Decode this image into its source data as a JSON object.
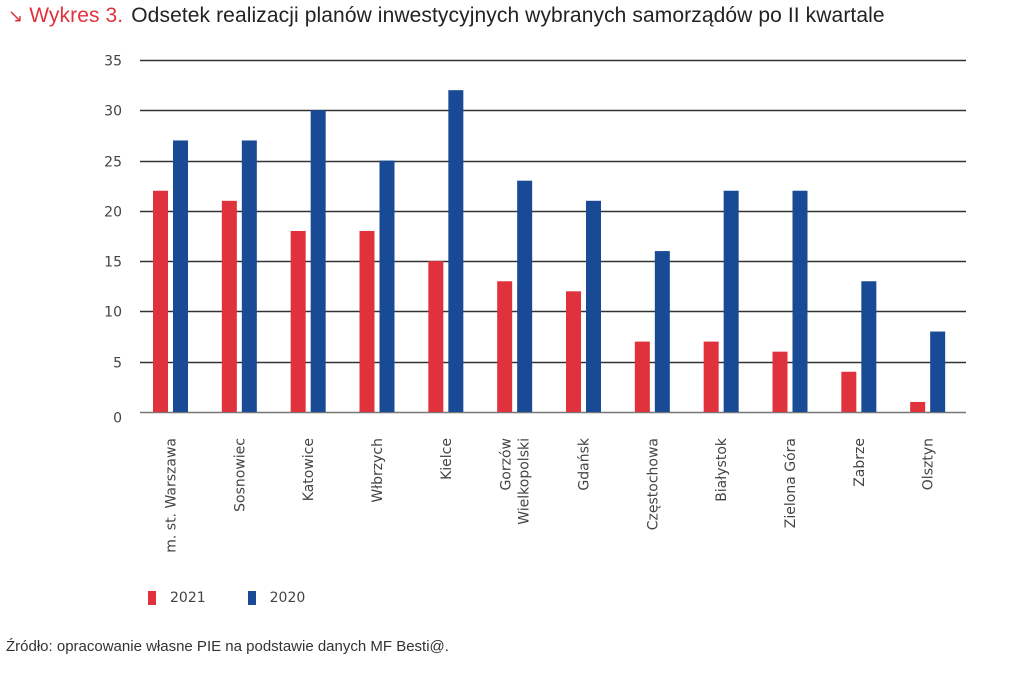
{
  "header": {
    "arrow_icon": "↘",
    "label": "Wykres 3.",
    "title": "Odsetek realizacji planów inwestycyjnych wybranych samorządów po II kwartale"
  },
  "colors": {
    "2021": "#e0323c",
    "2020": "#184a96",
    "grid": "#333333",
    "accent": "#e0323c"
  },
  "chart_data": {
    "type": "bar",
    "title": "Odsetek realizacji planów inwestycyjnych wybranych samorządów po II kwartale",
    "xlabel": "",
    "ylabel": "",
    "ylim": [
      0,
      35
    ],
    "yticks": [
      "0",
      "5",
      "10",
      "15",
      "20",
      "25",
      "30",
      "35"
    ],
    "grid": true,
    "legend_position": "bottom-left",
    "categories": [
      [
        "m. st. Warszawa"
      ],
      [
        "Sosnowiec"
      ],
      [
        "Katowice"
      ],
      [
        "Włbrzych"
      ],
      [
        "Kielce"
      ],
      [
        "Gorzów",
        "Wielkopolski"
      ],
      [
        "Gdańsk"
      ],
      [
        "Częstochowa"
      ],
      [
        "Białystok"
      ],
      [
        "Zielona Góra"
      ],
      [
        "Zabrze"
      ],
      [
        "Olsztyn"
      ]
    ],
    "series": [
      {
        "name": "2021",
        "color": "#e0323c",
        "values": [
          22,
          21,
          18,
          18,
          15,
          13,
          12,
          7,
          7,
          6,
          4,
          1
        ]
      },
      {
        "name": "2020",
        "color": "#184a96",
        "values": [
          27,
          27,
          30,
          25,
          32,
          23,
          21,
          16,
          22,
          22,
          13,
          8
        ]
      }
    ]
  },
  "legend": [
    {
      "label": "2021",
      "color": "#e0323c"
    },
    {
      "label": "2020",
      "color": "#184a96"
    }
  ],
  "source": "Źródło: opracowanie własne PIE na podstawie danych MF Besti@."
}
